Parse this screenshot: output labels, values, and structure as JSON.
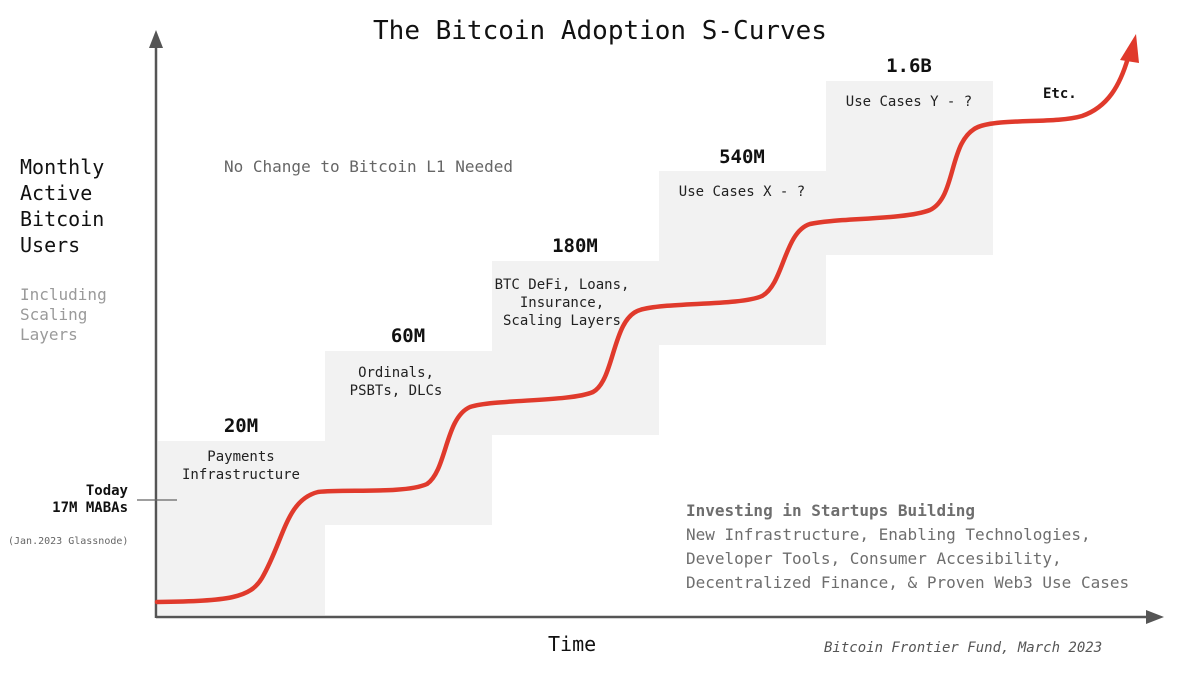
{
  "title": "The Bitcoin Adoption S-Curves",
  "y_axis": {
    "label_lines": [
      "Monthly",
      "Active",
      "Bitcoin",
      "Users"
    ],
    "sub_lines": [
      "Including",
      "Scaling",
      "Layers"
    ]
  },
  "x_axis": {
    "label": "Time"
  },
  "today_marker": {
    "line1": "Today",
    "line2": "17M MABAs",
    "source": "(Jan.2023 Glassnode)"
  },
  "steps": [
    {
      "value": "20M",
      "lines": [
        "Payments",
        "Infrastructure"
      ]
    },
    {
      "value": "60M",
      "lines": [
        "Ordinals,",
        "PSBTs, DLCs"
      ]
    },
    {
      "value": "180M",
      "lines": [
        "BTC DeFi, Loans,",
        "Insurance,",
        "Scaling Layers"
      ]
    },
    {
      "value": "540M",
      "lines": [
        "Use Cases X - ?"
      ]
    },
    {
      "value": "1.6B",
      "lines": [
        "Use Cases Y - ?"
      ]
    }
  ],
  "etc_label": "Etc.",
  "note": "No Change to Bitcoin L1 Needed",
  "investing": {
    "heading": "Investing in Startups Building",
    "lines": [
      "New Infrastructure, Enabling Technologies,",
      "Developer Tools, Consumer Accesibility,",
      "Decentralized Finance, & Proven Web3 Use Cases"
    ]
  },
  "credit": "Bitcoin Frontier Fund, March 2023",
  "colors": {
    "curve": "#e03a2c",
    "step_fill": "#f2f2f2",
    "axis": "#555555"
  }
}
